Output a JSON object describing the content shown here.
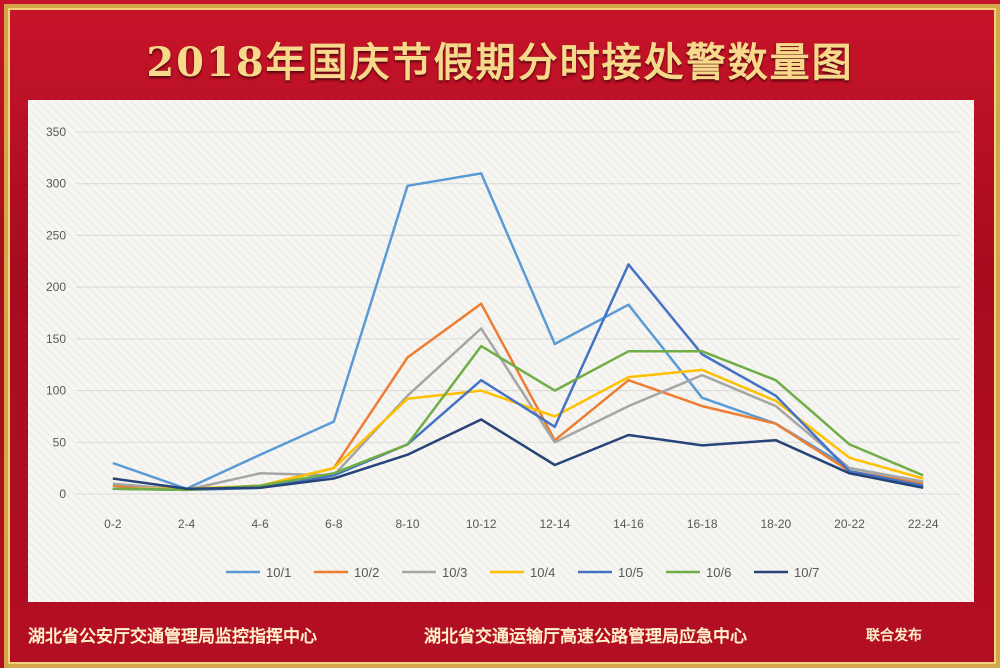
{
  "header": {
    "title": "2018年国庆节假期分时接处警数量图"
  },
  "footer": {
    "org1": "湖北省公安厅交通管理局监控指挥中心",
    "org2": "湖北省交通运输厅高速公路管理局应急中心",
    "note": "联合发布"
  },
  "chart_data": {
    "type": "line",
    "title": "2018年国庆节假期分时接处警数量图",
    "xlabel": "",
    "ylabel": "",
    "categories": [
      "0-2",
      "2-4",
      "4-6",
      "6-8",
      "8-10",
      "10-12",
      "12-14",
      "14-16",
      "16-18",
      "18-20",
      "20-22",
      "22-24"
    ],
    "ylim": [
      0,
      350
    ],
    "yticks": [
      0,
      50,
      100,
      150,
      200,
      250,
      300,
      350
    ],
    "grid": true,
    "legend": "bottom",
    "series": [
      {
        "name": "10/1",
        "color": "#5b9bd5",
        "values": [
          30,
          5,
          38,
          70,
          298,
          310,
          145,
          183,
          93,
          68,
          25,
          12
        ]
      },
      {
        "name": "10/2",
        "color": "#ed7d31",
        "values": [
          8,
          4,
          8,
          25,
          132,
          184,
          52,
          110,
          85,
          68,
          22,
          10
        ]
      },
      {
        "name": "10/3",
        "color": "#a5a5a5",
        "values": [
          10,
          4,
          20,
          18,
          95,
          160,
          50,
          85,
          115,
          85,
          25,
          12
        ]
      },
      {
        "name": "10/4",
        "color": "#ffc000",
        "values": [
          5,
          5,
          8,
          25,
          92,
          100,
          75,
          113,
          120,
          90,
          35,
          15
        ]
      },
      {
        "name": "10/5",
        "color": "#4472c4",
        "values": [
          5,
          4,
          6,
          18,
          48,
          110,
          65,
          222,
          135,
          95,
          22,
          8
        ]
      },
      {
        "name": "10/6",
        "color": "#70ad47",
        "values": [
          5,
          4,
          8,
          20,
          48,
          143,
          100,
          138,
          138,
          110,
          48,
          18
        ]
      },
      {
        "name": "10/7",
        "color": "#264478",
        "values": [
          15,
          5,
          6,
          15,
          38,
          72,
          28,
          57,
          47,
          52,
          20,
          6
        ]
      }
    ]
  }
}
